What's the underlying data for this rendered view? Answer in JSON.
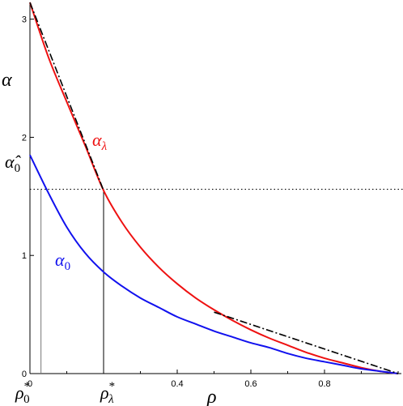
{
  "chart_data": {
    "type": "line",
    "title": "",
    "xlabel": "ρ",
    "ylabel": "α",
    "xlim": [
      0,
      1
    ],
    "ylim": [
      0,
      3.14159
    ],
    "x_ticks": [
      "0",
      "0.4",
      "0.6",
      "0.8"
    ],
    "y_ticks": [
      "0",
      "1",
      "2",
      "3"
    ],
    "grid": false,
    "colors": {
      "alpha_lambda": "#ee1111",
      "alpha_0": "#1111ee",
      "tangent": "#000000",
      "guides": "#000000"
    },
    "series": [
      {
        "name": "α_λ",
        "color": "#ee1111",
        "x": [
          0,
          0.05,
          0.1,
          0.15,
          0.2,
          0.25,
          0.3,
          0.35,
          0.4,
          0.45,
          0.5,
          0.55,
          0.6,
          0.65,
          0.7,
          0.75,
          0.8,
          0.85,
          0.9,
          0.95,
          1.0
        ],
        "y": [
          3.14159,
          2.68,
          2.3,
          1.93,
          1.55,
          1.28,
          1.07,
          0.9,
          0.76,
          0.64,
          0.54,
          0.45,
          0.37,
          0.3,
          0.24,
          0.18,
          0.13,
          0.09,
          0.05,
          0.02,
          0
        ]
      },
      {
        "name": "α_0",
        "color": "#1111ee",
        "x": [
          0,
          0.05,
          0.1,
          0.15,
          0.2,
          0.25,
          0.3,
          0.35,
          0.4,
          0.45,
          0.5,
          0.55,
          0.6,
          0.65,
          0.7,
          0.75,
          0.8,
          0.85,
          0.9,
          0.95,
          1.0
        ],
        "y": [
          1.85,
          1.53,
          1.24,
          1.02,
          0.86,
          0.74,
          0.64,
          0.56,
          0.48,
          0.42,
          0.36,
          0.31,
          0.26,
          0.22,
          0.17,
          0.13,
          0.1,
          0.07,
          0.04,
          0.02,
          0
        ]
      }
    ],
    "tangents": [
      {
        "x": [
          0,
          0.2
        ],
        "y": [
          3.14159,
          1.55
        ]
      },
      {
        "x": [
          0.5,
          1.0
        ],
        "y": [
          0.52,
          0
        ]
      }
    ],
    "hline_y": 1.56,
    "vlines": [
      0.03,
      0.2
    ],
    "annotations": {
      "alpha_lambda_label": "α",
      "alpha_lambda_sub": "λ",
      "alpha_0_label": "α",
      "alpha_0_sub": "0",
      "alpha_hat_label": "α̂",
      "alpha_hat_sub": "0",
      "rho0_label": "ρ",
      "rho0_sup": "*",
      "rho0_sub": "0",
      "rhol_label": "ρ",
      "rhol_sup": "*",
      "rhol_sub": "λ"
    }
  }
}
